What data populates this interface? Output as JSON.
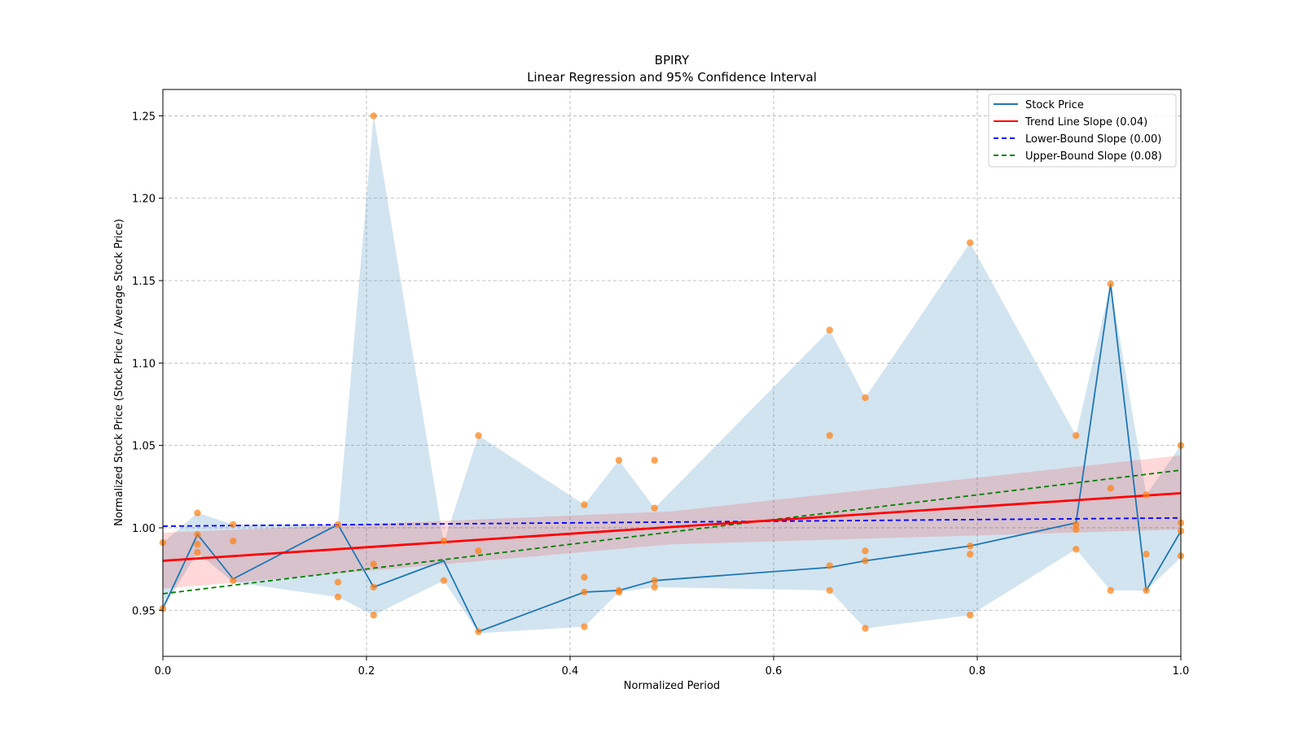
{
  "chart_data": {
    "type": "line",
    "title": "BPIRY",
    "subtitle": "Linear Regression and 95% Confidence Interval",
    "xlabel": "Normalized Period",
    "ylabel": "Normalized Stock Price (Stock Price / Average Stock Price)",
    "xlim": [
      0.0,
      1.0
    ],
    "ylim": [
      0.922,
      1.266
    ],
    "xticks": [
      0.0,
      0.2,
      0.4,
      0.6,
      0.8,
      1.0
    ],
    "xtick_labels": [
      "0.0",
      "0.2",
      "0.4",
      "0.6",
      "0.8",
      "1.0"
    ],
    "yticks": [
      0.95,
      1.0,
      1.05,
      1.1,
      1.15,
      1.2,
      1.25
    ],
    "ytick_labels": [
      "0.95",
      "1.00",
      "1.05",
      "1.10",
      "1.15",
      "1.20",
      "1.25"
    ],
    "grid": true,
    "legend_position": "top-right",
    "colors": {
      "stock": "#1f77b4",
      "band": "#1f77b4",
      "trend": "#ff0000",
      "ci": "#ff0000",
      "lower": "#0000ff",
      "upper": "#008000",
      "points": "#ff7f0e"
    },
    "legend": [
      {
        "label": "Stock Price",
        "color": "#1f77b4",
        "style": "solid"
      },
      {
        "label": "Trend Line Slope (0.04)",
        "color": "#ff0000",
        "style": "solid"
      },
      {
        "label": "Lower-Bound Slope (0.00)",
        "color": "#0000ff",
        "style": "dashed"
      },
      {
        "label": "Upper-Bound Slope (0.08)",
        "color": "#008000",
        "style": "dashed"
      }
    ],
    "stock_price": {
      "x": [
        0.0,
        0.034,
        0.069,
        0.172,
        0.207,
        0.276,
        0.31,
        0.414,
        0.448,
        0.483,
        0.655,
        0.69,
        0.793,
        0.897,
        0.931,
        0.966,
        1.0
      ],
      "y": [
        0.951,
        0.996,
        0.969,
        1.002,
        0.964,
        0.98,
        0.937,
        0.961,
        0.962,
        0.968,
        0.976,
        0.98,
        0.989,
        1.003,
        1.148,
        0.962,
        0.998
      ]
    },
    "band": {
      "x": [
        0.0,
        0.034,
        0.069,
        0.172,
        0.207,
        0.276,
        0.31,
        0.414,
        0.448,
        0.483,
        0.655,
        0.69,
        0.793,
        0.897,
        0.931,
        0.966,
        1.0
      ],
      "low": [
        0.951,
        0.985,
        0.967,
        0.958,
        0.947,
        0.968,
        0.936,
        0.94,
        0.961,
        0.964,
        0.962,
        0.939,
        0.947,
        0.987,
        0.962,
        0.962,
        0.982
      ],
      "high": [
        0.991,
        1.009,
        1.002,
        1.002,
        1.25,
        0.991,
        1.056,
        1.014,
        1.041,
        1.012,
        1.12,
        1.079,
        1.173,
        1.056,
        1.148,
        1.02,
        1.05
      ]
    },
    "scatter": {
      "x": [
        0.0,
        0.0,
        0.034,
        0.034,
        0.034,
        0.034,
        0.069,
        0.069,
        0.069,
        0.172,
        0.172,
        0.172,
        0.207,
        0.207,
        0.207,
        0.207,
        0.276,
        0.276,
        0.31,
        0.31,
        0.31,
        0.414,
        0.414,
        0.414,
        0.414,
        0.448,
        0.448,
        0.448,
        0.483,
        0.483,
        0.483,
        0.483,
        0.655,
        0.655,
        0.655,
        0.655,
        0.69,
        0.69,
        0.69,
        0.69,
        0.793,
        0.793,
        0.793,
        0.793,
        0.897,
        0.897,
        0.897,
        0.897,
        0.931,
        0.931,
        0.931,
        0.966,
        0.966,
        0.966,
        1.0,
        1.0,
        1.0,
        1.0
      ],
      "y": [
        0.951,
        0.991,
        1.009,
        0.996,
        0.99,
        0.985,
        1.002,
        0.992,
        0.968,
        1.002,
        0.967,
        0.958,
        1.25,
        0.978,
        0.964,
        0.947,
        0.992,
        0.968,
        1.056,
        0.986,
        0.937,
        1.014,
        0.97,
        0.961,
        0.94,
        1.041,
        0.962,
        0.961,
        1.041,
        1.012,
        0.968,
        0.964,
        1.12,
        1.056,
        0.977,
        0.962,
        1.079,
        0.986,
        0.98,
        0.939,
        1.173,
        0.989,
        0.984,
        0.947,
        1.056,
        1.002,
        0.999,
        0.987,
        1.148,
        1.024,
        0.962,
        1.02,
        0.984,
        0.962,
        1.05,
        1.003,
        0.998,
        0.983
      ]
    },
    "trend_line": {
      "x": [
        0.0,
        1.0
      ],
      "y": [
        0.98,
        1.021
      ]
    },
    "ci_band": {
      "x": [
        0.0,
        0.5,
        1.0
      ],
      "low": [
        0.963,
        0.99,
        0.999
      ],
      "high": [
        0.997,
        1.01,
        1.044
      ]
    },
    "lower_bound_line": {
      "x": [
        0.0,
        1.0
      ],
      "y": [
        1.001,
        1.006
      ]
    },
    "upper_bound_line": {
      "x": [
        0.0,
        1.0
      ],
      "y": [
        0.96,
        1.035
      ]
    }
  }
}
